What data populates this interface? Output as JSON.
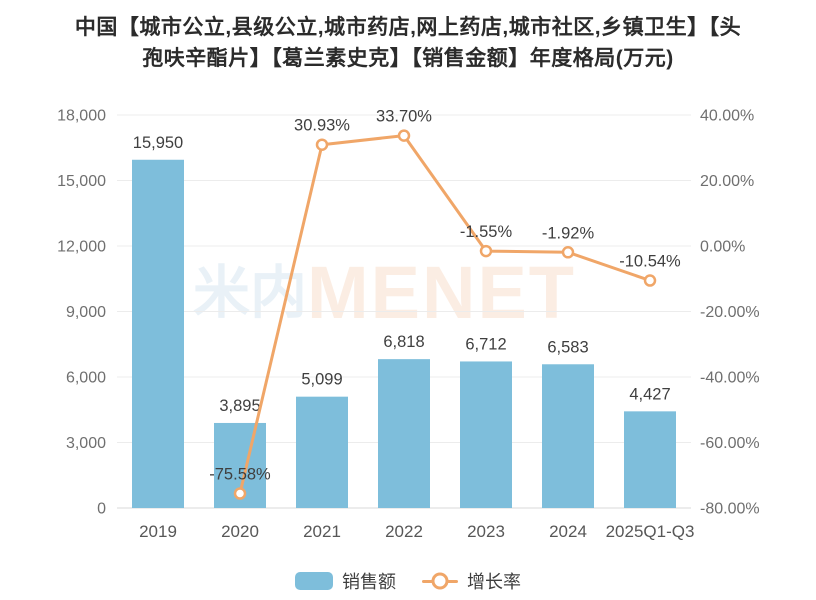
{
  "title": {
    "line1": "中国【城市公立,县级公立,城市药店,网上药店,城市社区,乡镇卫生】【头",
    "line2": "孢呋辛酯片】【葛兰素史克】【销售金额】年度格局(万元)"
  },
  "watermark": {
    "part1": "米内",
    "part2": "MENET"
  },
  "colors": {
    "bar": "#7EBEDB",
    "line": "#F0A668",
    "marker_fill": "#FFFFFF",
    "grid": "#ECECEC",
    "axis_line": "#DADADA",
    "tick_label": "#6F6F6F",
    "x_tick_label": "#575757",
    "data_label": "#3F3F3F",
    "title": "#2B2B2B",
    "watermark_blue": "#E9F1F7",
    "watermark_orange": "#FBEDE3"
  },
  "chart_data": {
    "type": "bar+line",
    "title": "中国【城市公立,县级公立,城市药店,网上药店,城市社区,乡镇卫生】【头孢呋辛酯片】【葛兰素史克】【销售金额】年度格局(万元)",
    "categories": [
      "2019",
      "2020",
      "2021",
      "2022",
      "2023",
      "2024",
      "2025Q1-Q3"
    ],
    "series": [
      {
        "name": "销售额",
        "type": "bar",
        "axis": "left",
        "values": [
          15950,
          3895,
          5099,
          6818,
          6712,
          6583,
          4427
        ],
        "labels": [
          "15,950",
          "3,895",
          "5,099",
          "6,818",
          "6,712",
          "6,583",
          "4,427"
        ]
      },
      {
        "name": "增长率",
        "type": "line",
        "axis": "right",
        "values": [
          null,
          -75.58,
          30.93,
          33.7,
          -1.55,
          -1.92,
          -10.54
        ],
        "labels": [
          null,
          "-75.58%",
          "30.93%",
          "33.70%",
          "-1.55%",
          "-1.92%",
          "-10.54%"
        ]
      }
    ],
    "left_axis": {
      "min": 0,
      "max": 18000,
      "ticks": [
        "0",
        "3,000",
        "6,000",
        "9,000",
        "12,000",
        "15,000",
        "18,000"
      ]
    },
    "right_axis": {
      "min": -80,
      "max": 40,
      "ticks": [
        "-80.00%",
        "-60.00%",
        "-40.00%",
        "-20.00%",
        "0.00%",
        "20.00%",
        "40.00%"
      ]
    },
    "grid": true,
    "legend_position": "bottom"
  }
}
